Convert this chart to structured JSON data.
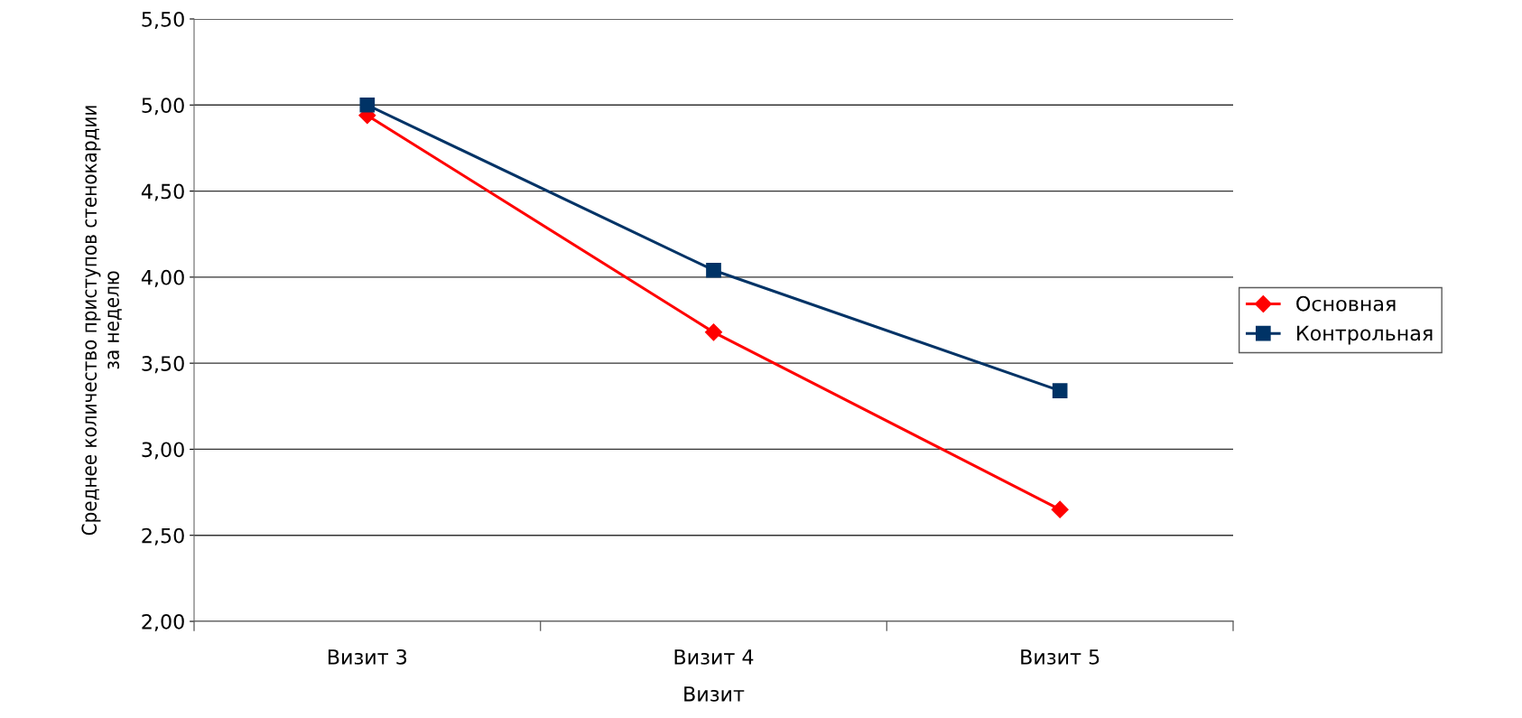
{
  "chart_data": {
    "type": "line",
    "xlabel": "Визит",
    "ylabel": "Среднее количество приступов стенокардии\nза неделю",
    "categories": [
      "Визит 3",
      "Визит 4",
      "Визит 5"
    ],
    "series": [
      {
        "name": "Основная",
        "color": "#ff0000",
        "marker": "diamond",
        "values": [
          4.94,
          3.68,
          2.65
        ]
      },
      {
        "name": "Контрольная",
        "color": "#003366",
        "marker": "square",
        "values": [
          5.0,
          4.04,
          3.34
        ]
      }
    ],
    "ylim": [
      2.0,
      5.5
    ],
    "yticks": [
      {
        "value": 2.0,
        "label": "2,00"
      },
      {
        "value": 2.5,
        "label": "2,50"
      },
      {
        "value": 3.0,
        "label": "3,00"
      },
      {
        "value": 3.5,
        "label": "3,50"
      },
      {
        "value": 4.0,
        "label": "4,00"
      },
      {
        "value": 4.5,
        "label": "4,50"
      },
      {
        "value": 5.0,
        "label": "5,00"
      },
      {
        "value": 5.5,
        "label": "5,50"
      }
    ],
    "grid": "y",
    "legend": "right",
    "line_style": "solid"
  }
}
